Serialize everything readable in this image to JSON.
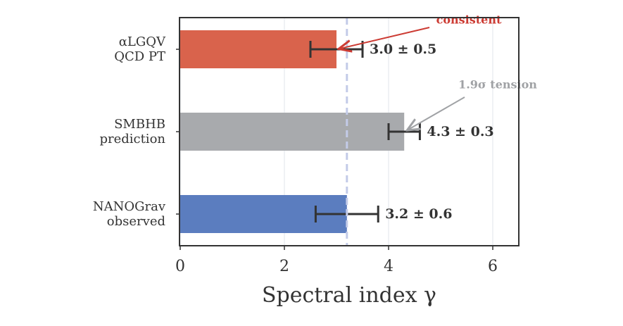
{
  "chart_data": {
    "type": "bar",
    "orientation": "horizontal",
    "categories": [
      "αLGQV\nQCD PT",
      "SMBHB\nprediction",
      "NANOGrav\nobserved"
    ],
    "values": [
      3.0,
      4.3,
      3.2
    ],
    "errors": [
      0.5,
      0.3,
      0.6
    ],
    "value_labels": [
      "3.0 ± 0.5",
      "4.3 ± 0.3",
      "3.2 ± 0.6"
    ],
    "colors": [
      "#d9634c",
      "#a8aaad",
      "#5b7dbf"
    ],
    "x_label": "Spectral index γ",
    "xlim": [
      0,
      6.5
    ],
    "xticks": [
      0,
      2,
      4,
      6
    ],
    "grid": true,
    "reference_line": 3.2,
    "annotations": [
      {
        "text": "consistent",
        "color": "#cc3b33"
      },
      {
        "text": "1.9σ tension",
        "color": "#a0a2a5"
      }
    ]
  }
}
